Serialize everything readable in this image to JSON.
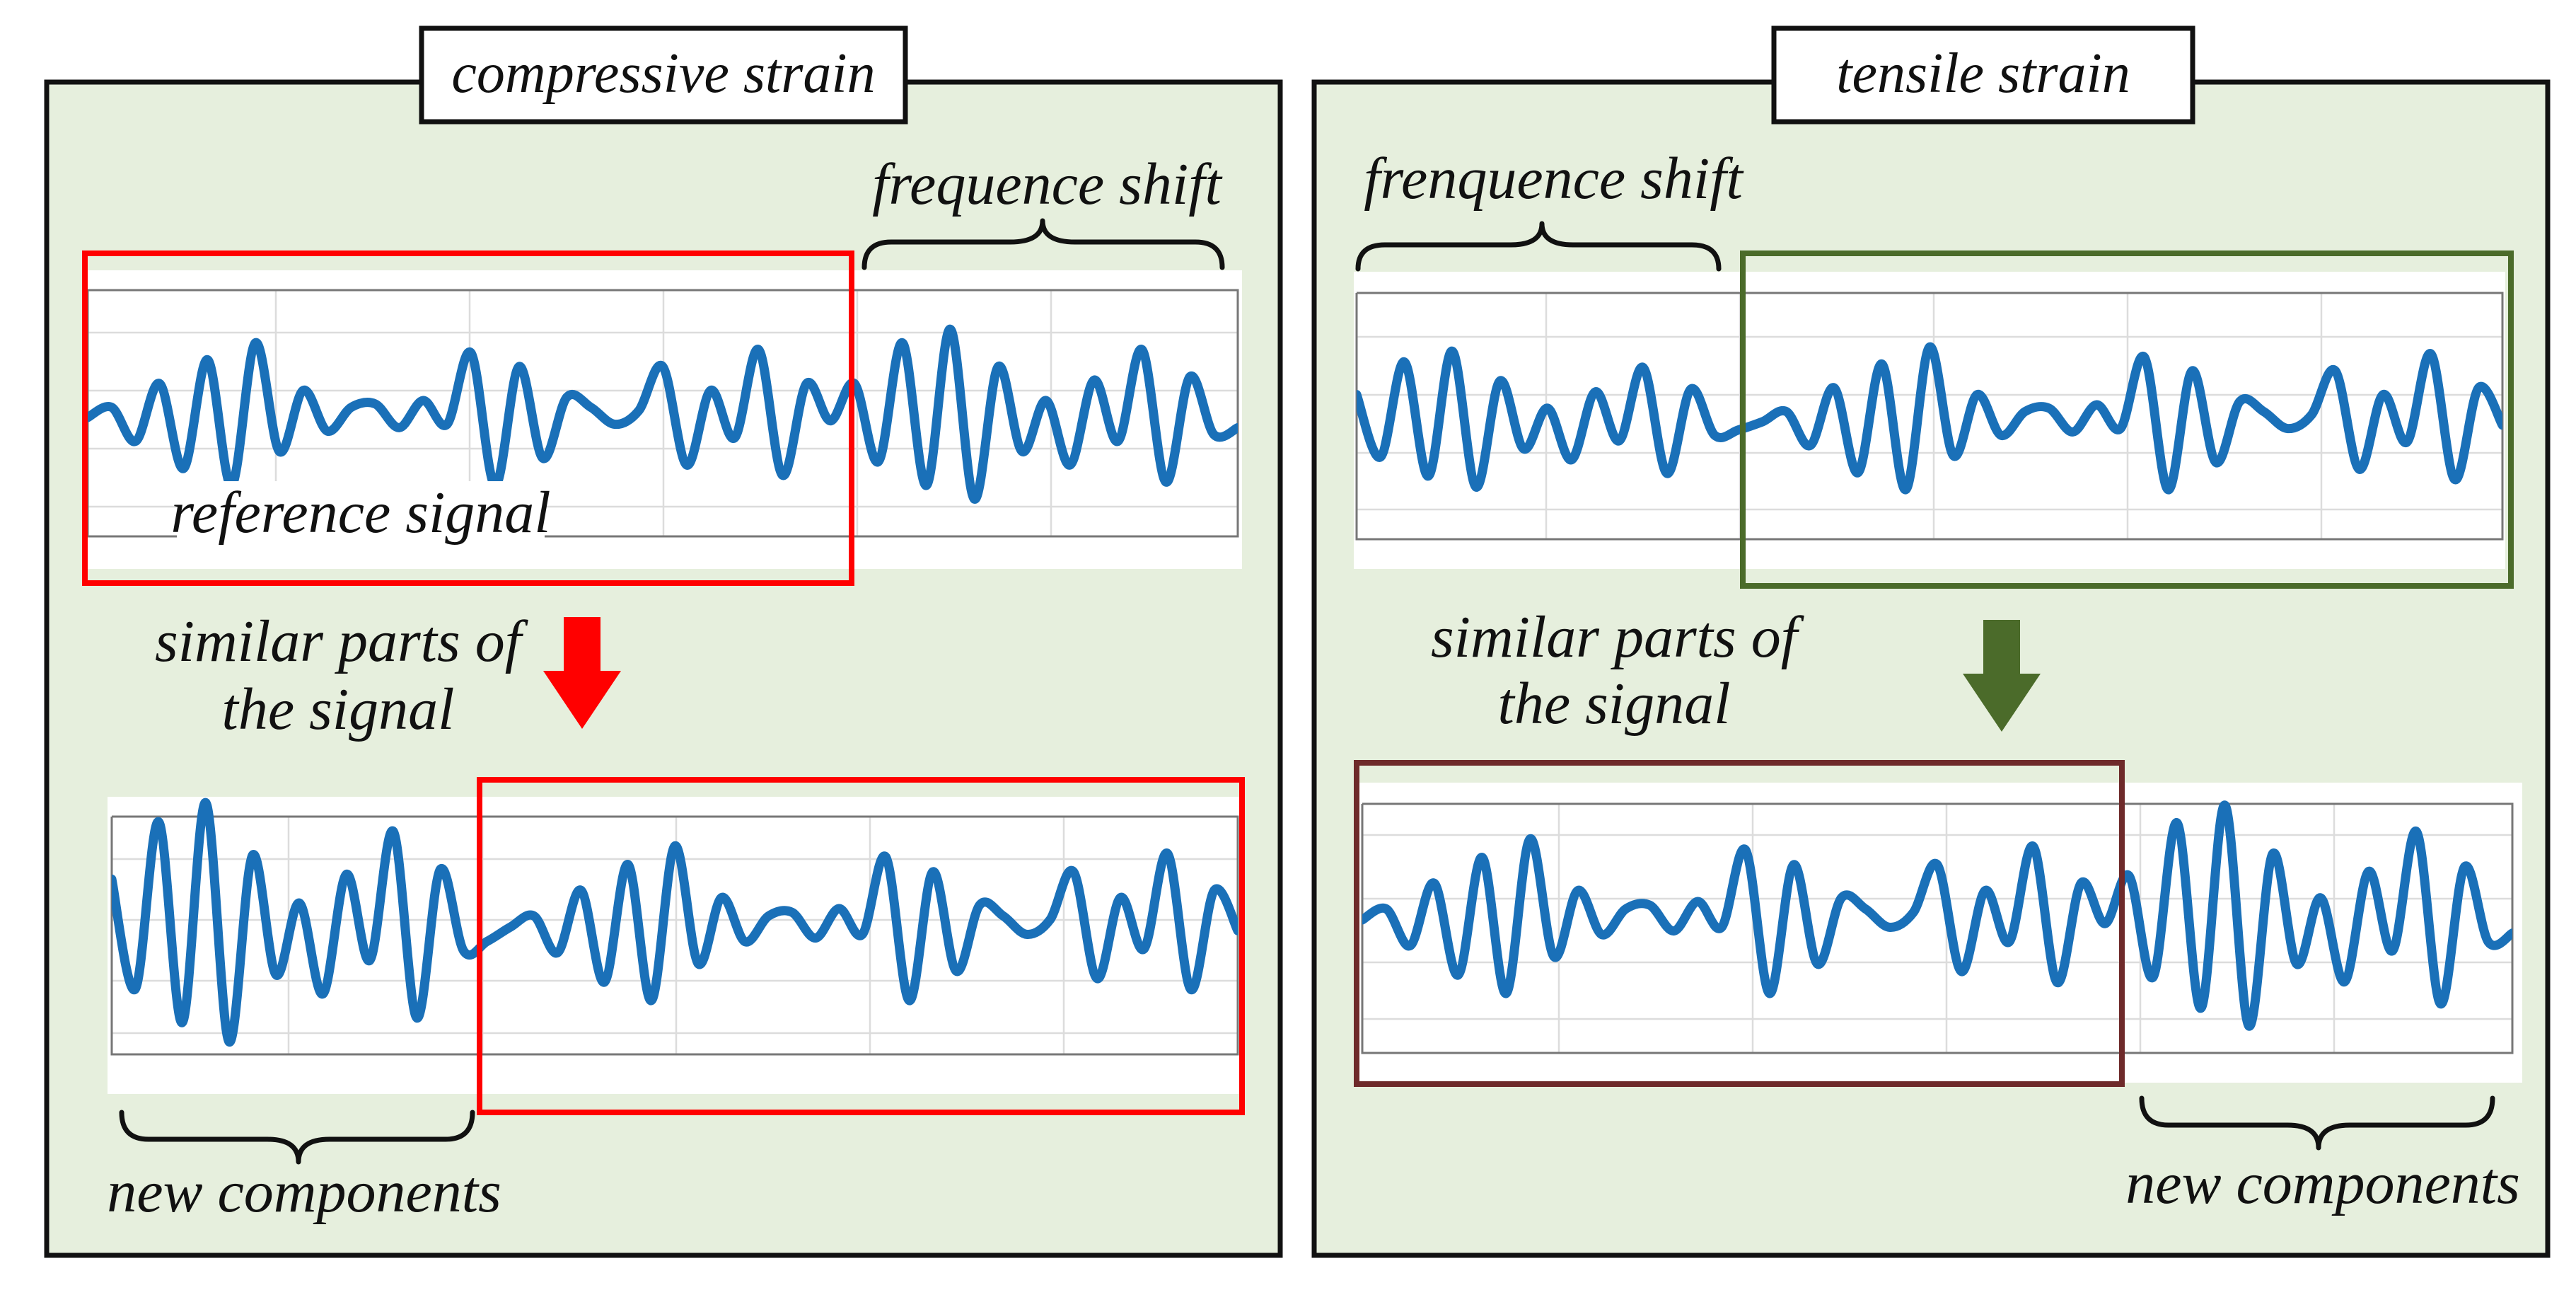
{
  "left_panel": {
    "title": "compressive strain",
    "frequency_label": "frequence shift",
    "reference_label": "reference signal",
    "similar_label_line1": "similar parts of",
    "similar_label_line2": "the signal",
    "new_components_label": "new components",
    "highlight_color": "#ff0000",
    "arrow_color": "#ff0000"
  },
  "right_panel": {
    "title": "tensile strain",
    "frequency_label": "frenquence shift",
    "similar_label_line1": "similar parts of",
    "similar_label_line2": "the signal",
    "new_components_label": "new components",
    "highlight_color_top": "#4b6b2a",
    "highlight_color_bottom": "#6e2a2a",
    "arrow_color": "#4b6b2a"
  },
  "colors": {
    "panel_background": "#e6efdd",
    "signal": "#1a70b8"
  }
}
